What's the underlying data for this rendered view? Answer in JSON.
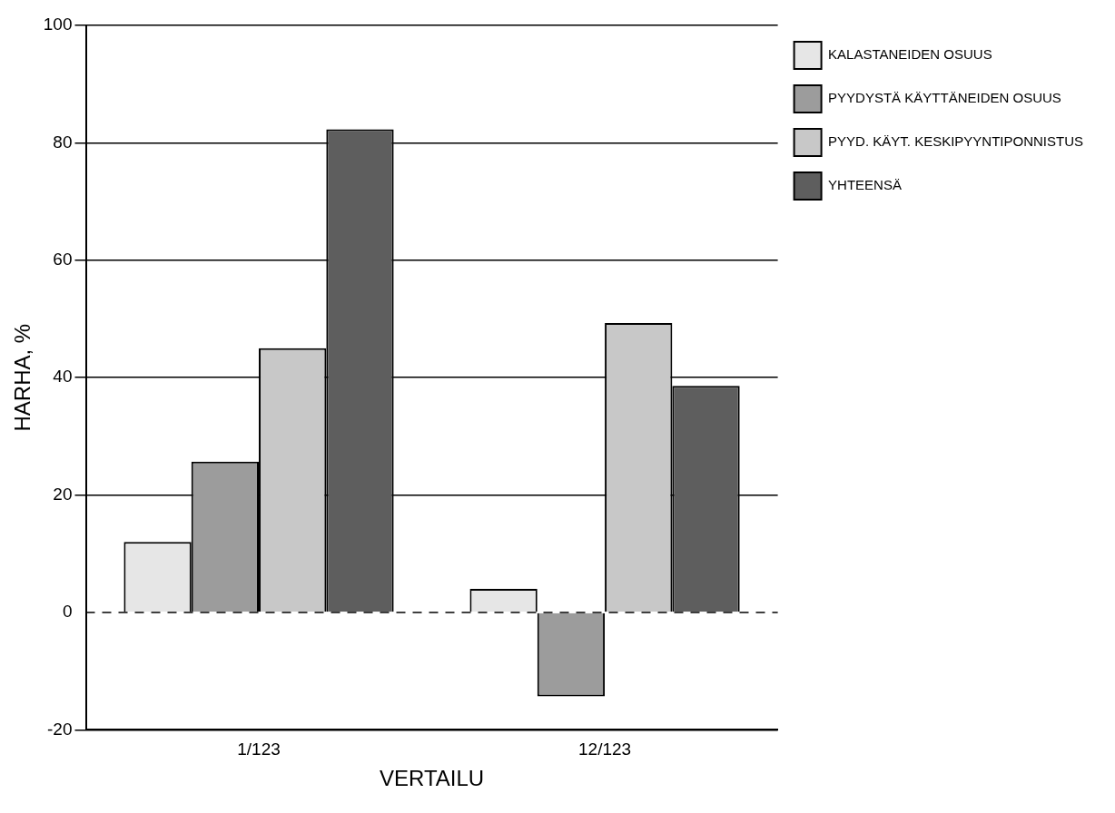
{
  "chart_data": {
    "type": "bar",
    "xlabel": "VERTAILU",
    "ylabel": "HARHA, %",
    "categories": [
      "1/123",
      "12/123"
    ],
    "series": [
      {
        "name": "KALASTANEIDEN OSUUS",
        "color": "#e6e6e6",
        "values": [
          12,
          4
        ]
      },
      {
        "name": "PYYDYSTÄ KÄYTTÄNEIDEN OSUUS",
        "color": "#9c9c9c",
        "values": [
          25.7,
          -14.3
        ]
      },
      {
        "name": "PYYD. KÄYT. KESKIPYYNTIPONNISTUS",
        "color": "#c8c8c8",
        "values": [
          45,
          49.3
        ]
      },
      {
        "name": "YHTEENSÄ",
        "color": "#5e5e5e",
        "values": [
          82.3,
          38.6
        ]
      }
    ],
    "ylim": [
      -20,
      100
    ],
    "yticks": [
      -20,
      0,
      20,
      40,
      60,
      80,
      100
    ],
    "grid": "y",
    "legend": "right",
    "ref_lines": [
      {
        "axis": "y",
        "value": 0,
        "line_style": "dashed"
      }
    ]
  }
}
